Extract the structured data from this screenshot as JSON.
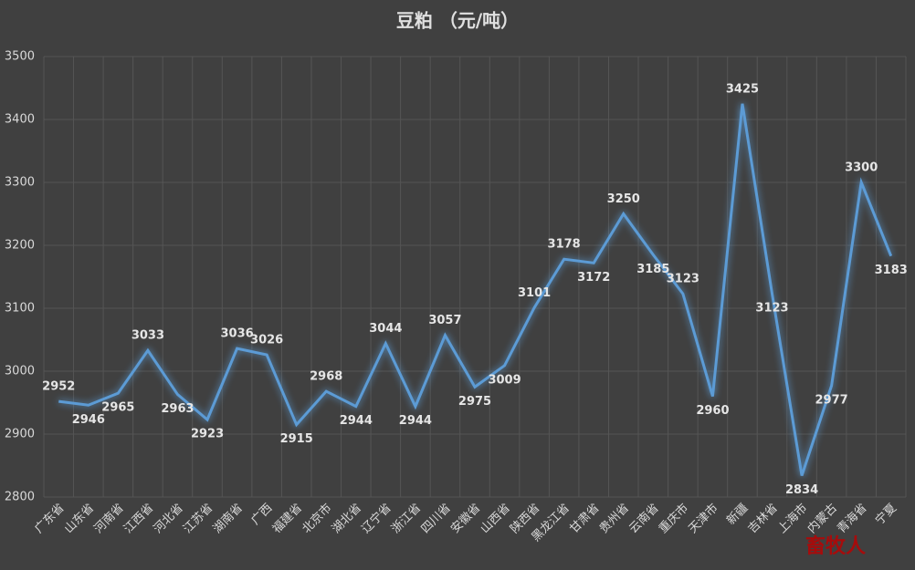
{
  "chart_data": {
    "type": "line",
    "title": "豆粕 （元/吨）",
    "categories": [
      "广东省",
      "山东省",
      "河南省",
      "江西省",
      "河北省",
      "江苏省",
      "湖南省",
      "广西",
      "福建省",
      "北京市",
      "湖北省",
      "辽宁省",
      "浙江省",
      "四川省",
      "安徽省",
      "山西省",
      "陕西省",
      "黑龙江省",
      "甘肃省",
      "贵州省",
      "云南省",
      "重庆市",
      "天津市",
      "新疆",
      "吉林省",
      "上海市",
      "内蒙古",
      "青海省",
      "宁夏"
    ],
    "values": [
      2952,
      2946,
      2965,
      3033,
      2963,
      2923,
      3036,
      3026,
      2915,
      2968,
      2944,
      3044,
      2944,
      3057,
      2975,
      3009,
      3101,
      3178,
      3172,
      3250,
      3185,
      3123,
      2960,
      3425,
      3123,
      2834,
      2977,
      3300,
      3183
    ],
    "color": "#5b9bd5",
    "ylim": [
      2800,
      3500
    ],
    "yticks": [
      2800,
      2900,
      3000,
      3100,
      3200,
      3300,
      3400,
      3500
    ],
    "grid": true,
    "watermark": "畜牧人"
  }
}
